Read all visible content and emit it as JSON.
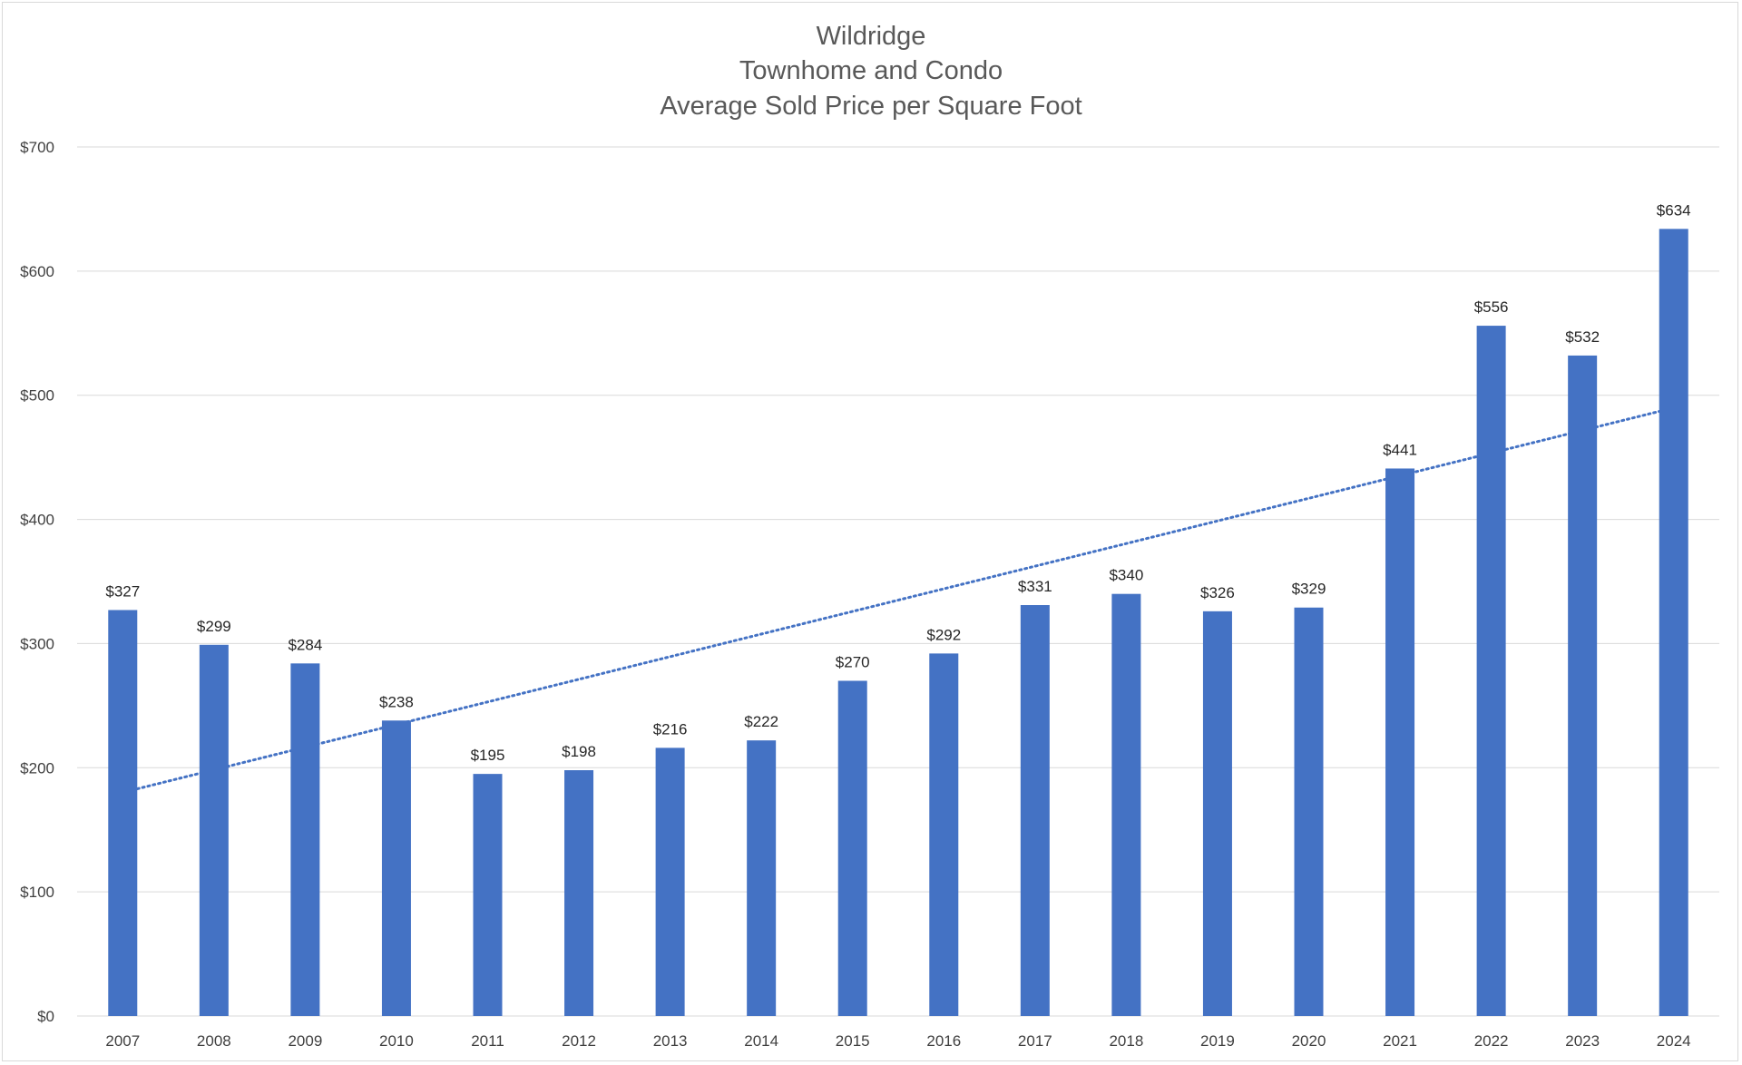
{
  "chart_data": {
    "type": "bar",
    "title": [
      "Wildridge",
      "Townhome and Condo",
      "Average Sold Price per Square Foot"
    ],
    "xlabel": "",
    "ylabel": "",
    "categories": [
      "2007",
      "2008",
      "2009",
      "2010",
      "2011",
      "2012",
      "2013",
      "2014",
      "2015",
      "2016",
      "2017",
      "2018",
      "2019",
      "2020",
      "2021",
      "2022",
      "2023",
      "2024"
    ],
    "values": [
      327,
      299,
      284,
      238,
      195,
      198,
      216,
      222,
      270,
      292,
      331,
      340,
      326,
      329,
      441,
      556,
      532,
      634
    ],
    "data_labels": [
      "$327",
      "$299",
      "$284",
      "$238",
      "$195",
      "$198",
      "$216",
      "$222",
      "$270",
      "$292",
      "$331",
      "$340",
      "$326",
      "$329",
      "$441",
      "$556",
      "$532",
      "$634"
    ],
    "ylim": [
      0,
      700
    ],
    "yticks": [
      0,
      100,
      200,
      300,
      400,
      500,
      600,
      700
    ],
    "ytick_labels": [
      "$0",
      "$100",
      "$200",
      "$300",
      "$400",
      "$500",
      "$600",
      "$700"
    ],
    "grid": true,
    "legend": "none",
    "trendline": {
      "type": "linear",
      "style": "dotted",
      "start": 183,
      "end": 487
    },
    "colors": {
      "bar": "#4472C4",
      "trendline": "#4472C4",
      "grid": "#d9d9d9",
      "title": "#595959"
    }
  }
}
